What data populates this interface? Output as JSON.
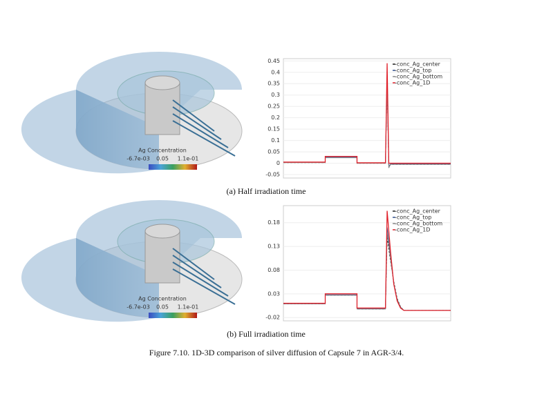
{
  "chart_data": [
    {
      "type": "line",
      "x": [
        0,
        25,
        25,
        44,
        44,
        61,
        62,
        63,
        64,
        66,
        100
      ],
      "xlim": [
        0,
        100
      ],
      "ylim": [
        -0.065,
        0.46
      ],
      "yticks": [
        -0.05,
        0,
        0.05,
        0.1,
        0.15,
        0.2,
        0.25,
        0.3,
        0.35,
        0.4,
        0.45
      ],
      "legend": "top-right",
      "series": [
        {
          "name": "-conc_Ag_center",
          "color": "#1a1a1a",
          "values": [
            0.003,
            0.003,
            0.025,
            0.025,
            0.0,
            0.0,
            0.36,
            -0.02,
            -0.005,
            -0.005,
            -0.005
          ]
        },
        {
          "name": "-conc_Ag_top",
          "color": "#2f4f8f",
          "values": [
            0.004,
            0.004,
            0.026,
            0.026,
            0.001,
            0.001,
            0.38,
            -0.015,
            -0.003,
            -0.003,
            -0.003
          ]
        },
        {
          "name": "-conc_Ag_bottom",
          "color": "#8a8a8a",
          "values": [
            0.003,
            0.003,
            0.024,
            0.024,
            0.0,
            0.0,
            0.35,
            -0.02,
            -0.005,
            -0.005,
            -0.005
          ]
        },
        {
          "name": "-conc_Ag_1D",
          "color": "#e0202a",
          "values": [
            0.005,
            0.005,
            0.03,
            0.03,
            0.002,
            0.002,
            0.44,
            0.0,
            0.0,
            0.0,
            0.0
          ]
        }
      ]
    },
    {
      "type": "line",
      "x": [
        0,
        25,
        25,
        44,
        44,
        61,
        62,
        64,
        66,
        68,
        70,
        72,
        100
      ],
      "xlim": [
        0,
        100
      ],
      "ylim": [
        -0.027,
        0.216
      ],
      "yticks": [
        -0.02,
        0.03,
        0.08,
        0.13,
        0.18
      ],
      "legend": "top-right",
      "series": [
        {
          "name": "-conc_Ag_center",
          "color": "#1a1a1a",
          "values": [
            0.009,
            0.009,
            0.027,
            0.027,
            -0.002,
            -0.002,
            0.15,
            0.1,
            0.055,
            0.02,
            0.003,
            -0.005,
            -0.005
          ]
        },
        {
          "name": "-conc_Ag_top",
          "color": "#2f4f8f",
          "values": [
            0.009,
            0.009,
            0.028,
            0.028,
            -0.001,
            -0.001,
            0.17,
            0.11,
            0.05,
            0.017,
            0.002,
            -0.005,
            -0.005
          ]
        },
        {
          "name": "-conc_Ag_bottom",
          "color": "#8a8a8a",
          "values": [
            0.009,
            0.009,
            0.027,
            0.027,
            -0.002,
            -0.002,
            0.16,
            0.105,
            0.052,
            0.018,
            0.002,
            -0.005,
            -0.005
          ]
        },
        {
          "name": "-conc_Ag_1D",
          "color": "#e0202a",
          "values": [
            0.01,
            0.01,
            0.03,
            0.03,
            0.0,
            0.0,
            0.205,
            0.12,
            0.05,
            0.015,
            0.0,
            -0.005,
            -0.005
          ]
        }
      ]
    }
  ],
  "renders": [
    {
      "colorbar_title": "Ag Concentration",
      "colorbar_labels": [
        "-6.7e-03",
        "0.05",
        "1.1e-01"
      ]
    },
    {
      "colorbar_title": "Ag Concentration",
      "colorbar_labels": [
        "-6.7e-03",
        "0.05",
        "1.1e-01"
      ]
    }
  ],
  "subcaptions": [
    "(a) Half irradiation time",
    "(b) Full irradiation time"
  ],
  "caption": "Figure 7.10. 1D-3D comparison of silver diffusion of Capsule 7 in AGR-3/4."
}
